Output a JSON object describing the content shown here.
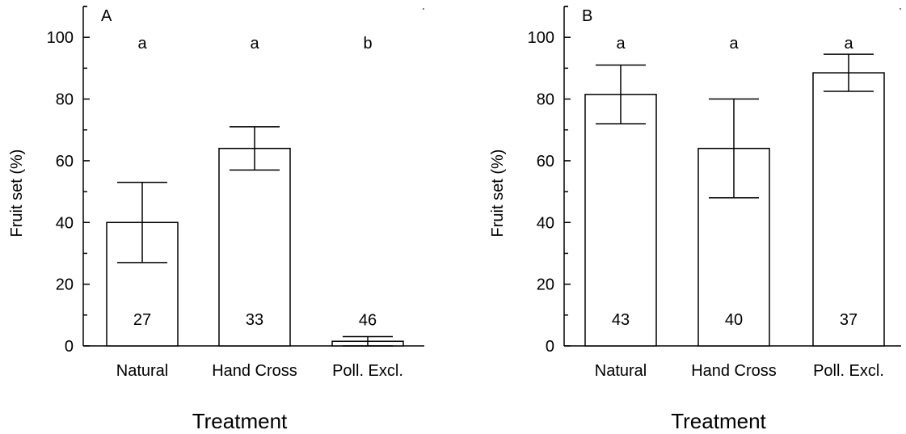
{
  "chart_data": [
    {
      "type": "bar",
      "panel_label": "A",
      "categories": [
        "Natural",
        "Hand Cross",
        "Poll. Excl."
      ],
      "values": [
        40,
        64,
        1.5
      ],
      "error_low": [
        27,
        57,
        0
      ],
      "error_high": [
        53,
        71,
        3
      ],
      "sample_sizes": [
        "27",
        "33",
        "46"
      ],
      "significance_letters": [
        "a",
        "a",
        "b"
      ],
      "xlabel": "Treatment",
      "ylabel": "Fruit set (%)",
      "ylim": [
        0,
        110
      ],
      "yticks": [
        0,
        20,
        40,
        60,
        80,
        100
      ],
      "grid": false,
      "bar_fill": "#ffffff",
      "stroke_color": "#000000"
    },
    {
      "type": "bar",
      "panel_label": "B",
      "categories": [
        "Natural",
        "Hand Cross",
        "Poll. Excl."
      ],
      "values": [
        81.5,
        64,
        88.5
      ],
      "error_low": [
        72,
        48,
        82.5
      ],
      "error_high": [
        91,
        80,
        94.5
      ],
      "sample_sizes": [
        "43",
        "40",
        "37"
      ],
      "significance_letters": [
        "a",
        "a",
        "a"
      ],
      "xlabel": "Treatment",
      "ylabel": "Fruit set (%)",
      "ylim": [
        0,
        110
      ],
      "yticks": [
        0,
        20,
        40,
        60,
        80,
        100
      ],
      "grid": false,
      "bar_fill": "#ffffff",
      "stroke_color": "#000000"
    }
  ]
}
